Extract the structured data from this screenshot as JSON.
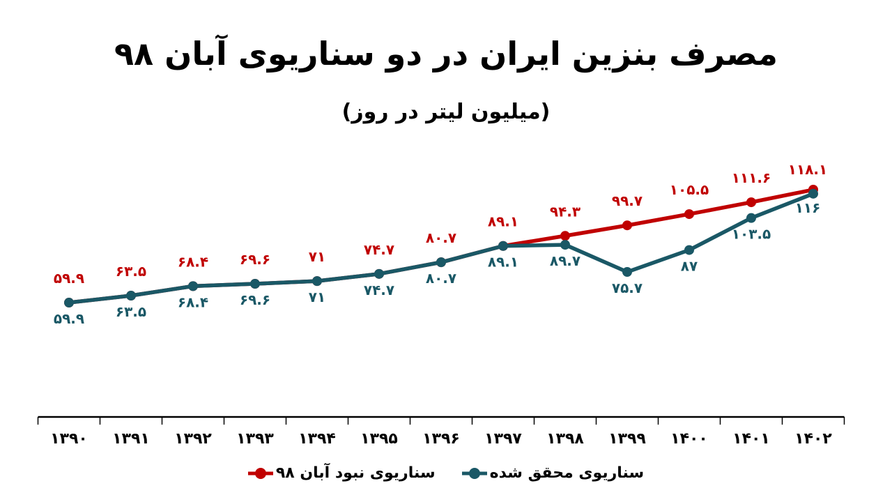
{
  "title": "مصرف بنزین ایران در دو سناریوی آبان ۹۸",
  "subtitle": "(میلیون لیتر در روز)",
  "colors": {
    "scenario_no_aban98": "#C00000",
    "scenario_realized": "#1A5866",
    "axis": "#000000",
    "text": "#000000",
    "background": "#FFFFFF"
  },
  "legend": {
    "items": [
      {
        "id": "scenario-no-aban98",
        "label": "سناریوی نبود آبان ۹۸",
        "color": "#C00000"
      },
      {
        "id": "scenario-realized",
        "label": "سناریوی محقق شده",
        "color": "#1A5866"
      }
    ]
  },
  "chart_data": {
    "type": "line",
    "title": "مصرف بنزین ایران در دو سناریوی آبان ۹۸",
    "subtitle": "(میلیون لیتر در روز)",
    "categories": [
      "۱۳۹۰",
      "۱۳۹۱",
      "۱۳۹۲",
      "۱۳۹۳",
      "۱۳۹۴",
      "۱۳۹۵",
      "۱۳۹۶",
      "۱۳۹۷",
      "۱۳۹۸",
      "۱۳۹۹",
      "۱۴۰۰",
      "۱۴۰۱",
      "۱۴۰۲"
    ],
    "categories_values": [
      1390,
      1391,
      1392,
      1393,
      1394,
      1395,
      1396,
      1397,
      1398,
      1399,
      1400,
      1401,
      1402
    ],
    "series": [
      {
        "name": "سناریوی نبود آبان ۹۸",
        "color": "#C00000",
        "values": [
          59.9,
          63.5,
          68.4,
          69.6,
          71,
          74.7,
          80.7,
          89.1,
          94.3,
          99.7,
          105.5,
          111.6,
          118.1
        ],
        "labels": [
          "۵۹.۹",
          "۶۳.۵",
          "۶۸.۴",
          "۶۹.۶",
          "۷۱",
          "۷۴.۷",
          "۸۰.۷",
          "۸۹.۱",
          "۹۴.۳",
          "۹۹.۷",
          "۱۰۵.۵",
          "۱۱۱.۶",
          "۱۱۸.۱"
        ]
      },
      {
        "name": "سناریوی محقق شده",
        "color": "#1A5866",
        "values": [
          59.9,
          63.5,
          68.4,
          69.6,
          71,
          74.7,
          80.7,
          89.1,
          89.7,
          75.7,
          87,
          103.5,
          116
        ],
        "labels": [
          "۵۹.۹",
          "۶۳.۵",
          "۶۸.۴",
          "۶۹.۶",
          "۷۱",
          "۷۴.۷",
          "۸۰.۷",
          "۸۹.۱",
          "۸۹.۷",
          "۷۵.۷",
          "۸۷",
          "۱۰۳.۵",
          "۱۱۶"
        ]
      }
    ],
    "xlabel": "",
    "ylabel": "",
    "grid": false,
    "y_axis_visible": false,
    "data_labels": true,
    "legend_position": "bottom"
  }
}
